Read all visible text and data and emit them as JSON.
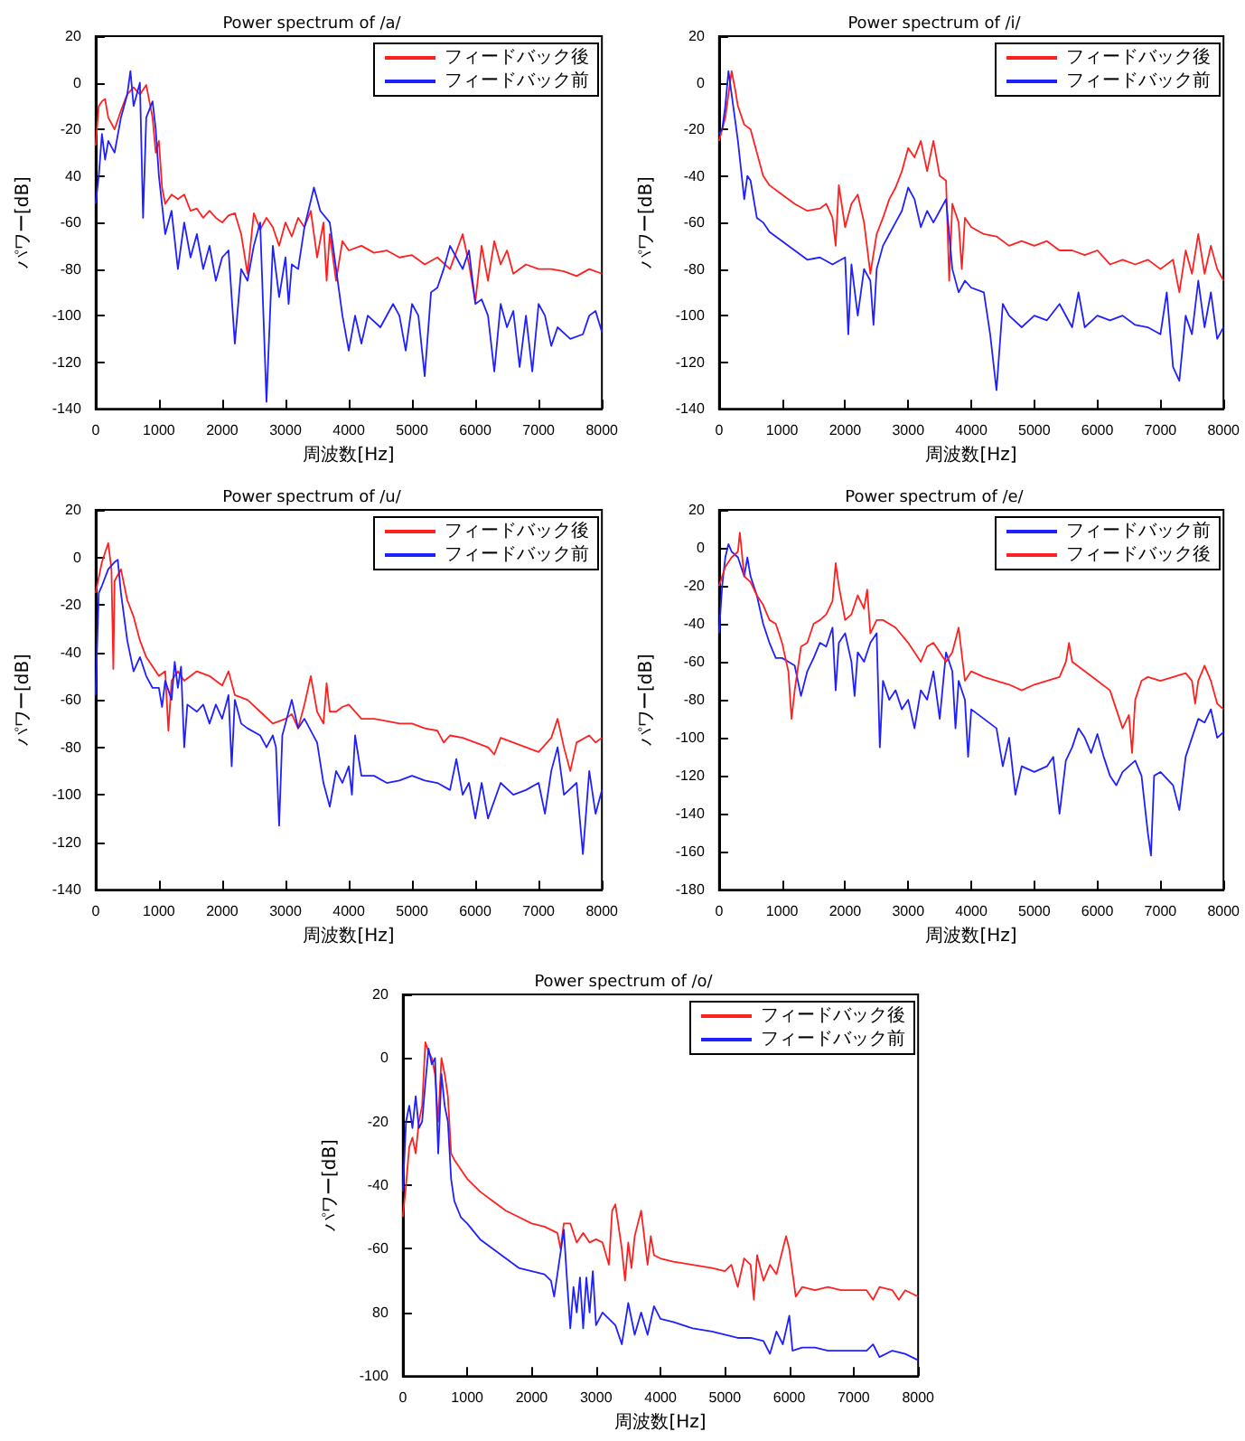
{
  "chart_data": [
    {
      "type": "line",
      "title": "Power spectrum of /a/",
      "xlabel": "周波数[Hz]",
      "ylabel": "パワー[dB]",
      "legend": "top right",
      "marker": "none",
      "xlim": [
        0,
        8000
      ],
      "xticks": [
        0,
        1000,
        2000,
        3000,
        4000,
        5000,
        6000,
        7000,
        8000
      ],
      "ylim": [
        -140,
        20
      ],
      "yticks": [
        20,
        0,
        -20,
        {
          "value": -40,
          "label": "40"
        },
        -60,
        -80,
        -100,
        -120,
        -140
      ],
      "series": [
        {
          "name": "フィードバック後",
          "color": "#ff2020",
          "x": [
            0,
            50,
            100,
            150,
            200,
            300,
            400,
            500,
            600,
            700,
            800,
            900,
            950,
            1000,
            1050,
            1100,
            1200,
            1300,
            1400,
            1500,
            1600,
            1700,
            1800,
            1900,
            2000,
            2100,
            2200,
            2300,
            2400,
            2500,
            2600,
            2700,
            2800,
            2900,
            3000,
            3100,
            3200,
            3300,
            3400,
            3500,
            3600,
            3650,
            3700,
            3800,
            3900,
            4000,
            4200,
            4400,
            4600,
            4800,
            5000,
            5200,
            5400,
            5600,
            5800,
            5900,
            6000,
            6100,
            6200,
            6300,
            6400,
            6500,
            6600,
            6800,
            7000,
            7200,
            7400,
            7600,
            7800,
            8000
          ],
          "values": [
            -27,
            -10,
            -8,
            -7,
            -15,
            -20,
            -12,
            -5,
            -2,
            -5,
            -1,
            -15,
            -30,
            -25,
            -45,
            -52,
            -48,
            -50,
            -48,
            -55,
            -54,
            -58,
            -55,
            -58,
            -60,
            -57,
            -56,
            -65,
            -82,
            -56,
            -63,
            -58,
            -62,
            -70,
            -60,
            -66,
            -58,
            -62,
            -55,
            -75,
            -60,
            -85,
            -65,
            -85,
            -68,
            -72,
            -70,
            -73,
            -72,
            -75,
            -74,
            -78,
            -75,
            -80,
            -65,
            -78,
            -94,
            -70,
            -85,
            -68,
            -78,
            -72,
            -82,
            -78,
            -80,
            -80,
            -81,
            -83,
            -80,
            -82
          ]
        },
        {
          "name": "フィードバック前",
          "color": "#2020ff",
          "x": [
            0,
            50,
            100,
            150,
            200,
            300,
            400,
            500,
            550,
            600,
            700,
            750,
            800,
            900,
            950,
            1000,
            1100,
            1200,
            1300,
            1400,
            1500,
            1600,
            1700,
            1800,
            1900,
            2000,
            2100,
            2200,
            2300,
            2400,
            2500,
            2600,
            2700,
            2800,
            2900,
            3000,
            3050,
            3100,
            3200,
            3300,
            3450,
            3550,
            3700,
            3800,
            3900,
            4000,
            4100,
            4200,
            4300,
            4500,
            4700,
            4800,
            4900,
            5000,
            5100,
            5200,
            5300,
            5400,
            5500,
            5600,
            5700,
            5800,
            5900,
            6000,
            6100,
            6200,
            6300,
            6400,
            6500,
            6600,
            6700,
            6800,
            6900,
            7000,
            7100,
            7200,
            7300,
            7500,
            7700,
            7800,
            7900,
            8000
          ],
          "values": [
            -52,
            -40,
            -22,
            -33,
            -25,
            -30,
            -15,
            -5,
            5,
            -10,
            0,
            -58,
            -15,
            -8,
            -20,
            -40,
            -65,
            -55,
            -80,
            -60,
            -75,
            -65,
            -80,
            -70,
            -85,
            -75,
            -72,
            -112,
            -80,
            -85,
            -70,
            -60,
            -137,
            -70,
            -92,
            -75,
            -95,
            -78,
            -80,
            -62,
            -45,
            -55,
            -60,
            -80,
            -100,
            -115,
            -100,
            -112,
            -100,
            -105,
            -95,
            -100,
            -115,
            -95,
            -100,
            -126,
            -90,
            -88,
            -80,
            -70,
            -75,
            -80,
            -72,
            -95,
            -93,
            -100,
            -124,
            -95,
            -105,
            -98,
            -122,
            -100,
            -124,
            -95,
            -100,
            -113,
            -105,
            -110,
            -108,
            -100,
            -98,
            -107
          ]
        }
      ]
    },
    {
      "type": "line",
      "title": "Power spectrum of /i/",
      "xlabel": "周波数[Hz]",
      "ylabel": "パワー[dB]",
      "legend": "top right",
      "marker": "none",
      "xlim": [
        0,
        8000
      ],
      "xticks": [
        0,
        1000,
        2000,
        3000,
        4000,
        5000,
        6000,
        7000,
        8000
      ],
      "ylim": [
        -140,
        20
      ],
      "yticks": [
        20,
        0,
        -20,
        -40,
        -60,
        -80,
        -100,
        -120,
        -140
      ],
      "series": [
        {
          "name": "フィードバック後",
          "color": "#ff2020",
          "x": [
            0,
            100,
            150,
            200,
            250,
            300,
            400,
            500,
            600,
            700,
            800,
            1000,
            1200,
            1400,
            1600,
            1700,
            1800,
            1850,
            1900,
            2000,
            2100,
            2200,
            2300,
            2400,
            2500,
            2600,
            2700,
            2800,
            2900,
            3000,
            3100,
            3200,
            3300,
            3400,
            3500,
            3600,
            3650,
            3700,
            3800,
            3850,
            3900,
            4000,
            4200,
            4400,
            4600,
            4800,
            5000,
            5200,
            5400,
            5600,
            5800,
            6000,
            6200,
            6400,
            6600,
            6800,
            7000,
            7200,
            7300,
            7400,
            7500,
            7600,
            7700,
            7800,
            7900,
            8000
          ],
          "values": [
            -25,
            -15,
            -5,
            5,
            -2,
            -10,
            -18,
            -20,
            -30,
            -40,
            -44,
            -48,
            -52,
            -55,
            -54,
            -52,
            -58,
            -70,
            -44,
            -62,
            -52,
            -48,
            -60,
            -82,
            -65,
            -58,
            -50,
            -45,
            -38,
            -28,
            -32,
            -25,
            -38,
            -25,
            -40,
            -42,
            -85,
            -52,
            -60,
            -80,
            -58,
            -62,
            -65,
            -66,
            -70,
            -68,
            -70,
            -68,
            -72,
            -72,
            -74,
            -72,
            -78,
            -76,
            -78,
            -76,
            -80,
            -76,
            -90,
            -72,
            -82,
            -65,
            -82,
            -70,
            -80,
            -85
          ]
        },
        {
          "name": "フィードバック前",
          "color": "#2020ff",
          "x": [
            0,
            50,
            100,
            150,
            200,
            250,
            300,
            400,
            450,
            500,
            600,
            700,
            800,
            1000,
            1200,
            1400,
            1600,
            1800,
            2000,
            2050,
            2100,
            2200,
            2300,
            2400,
            2450,
            2500,
            2600,
            2700,
            2800,
            2900,
            3000,
            3100,
            3200,
            3300,
            3400,
            3500,
            3600,
            3700,
            3800,
            3900,
            4000,
            4200,
            4300,
            4400,
            4500,
            4600,
            4800,
            5000,
            5200,
            5400,
            5600,
            5700,
            5800,
            6000,
            6200,
            6400,
            6600,
            6800,
            7000,
            7100,
            7200,
            7300,
            7400,
            7500,
            7600,
            7700,
            7800,
            7900,
            8000
          ],
          "values": [
            -22,
            -20,
            -10,
            5,
            -5,
            -15,
            -25,
            -50,
            -40,
            -42,
            -58,
            -60,
            -64,
            -68,
            -72,
            -76,
            -75,
            -78,
            -75,
            -108,
            -78,
            -100,
            -80,
            -85,
            -104,
            -80,
            -70,
            -65,
            -60,
            -55,
            -45,
            -50,
            -62,
            -55,
            -60,
            -55,
            -50,
            -80,
            -90,
            -85,
            -88,
            -90,
            -108,
            -132,
            -95,
            -100,
            -105,
            -100,
            -102,
            -95,
            -105,
            -90,
            -105,
            -100,
            -102,
            -100,
            -104,
            -105,
            -108,
            -90,
            -122,
            -128,
            -100,
            -108,
            -85,
            -105,
            -90,
            -110,
            -105
          ]
        }
      ]
    },
    {
      "type": "line",
      "title": "Power spectrum of /u/",
      "xlabel": "周波数[Hz]",
      "ylabel": "パワー[dB]",
      "legend": "top right",
      "marker": "none",
      "xlim": [
        0,
        8000
      ],
      "xticks": [
        0,
        1000,
        2000,
        3000,
        4000,
        5000,
        6000,
        7000,
        8000
      ],
      "ylim": [
        -140,
        20
      ],
      "yticks": [
        20,
        0,
        -20,
        -40,
        -60,
        -80,
        -100,
        -120,
        -140
      ],
      "series": [
        {
          "name": "フィードバック後",
          "color": "#ff2020",
          "x": [
            0,
            100,
            200,
            250,
            280,
            300,
            400,
            500,
            600,
            700,
            800,
            1000,
            1100,
            1150,
            1200,
            1300,
            1400,
            1600,
            1800,
            2000,
            2100,
            2200,
            2400,
            2600,
            2800,
            3000,
            3100,
            3200,
            3300,
            3400,
            3500,
            3600,
            3650,
            3700,
            3800,
            3900,
            4000,
            4200,
            4400,
            4600,
            4800,
            5000,
            5200,
            5400,
            5500,
            5600,
            5800,
            6000,
            6200,
            6300,
            6400,
            6600,
            6800,
            7000,
            7200,
            7300,
            7400,
            7500,
            7600,
            7800,
            7900,
            8000
          ],
          "values": [
            -15,
            -2,
            6,
            -5,
            -47,
            -10,
            -5,
            -18,
            -25,
            -35,
            -42,
            -50,
            -48,
            -73,
            -52,
            -48,
            -52,
            -48,
            -50,
            -54,
            -48,
            -58,
            -60,
            -65,
            -70,
            -68,
            -66,
            -72,
            -62,
            -50,
            -65,
            -70,
            -53,
            -65,
            -65,
            -63,
            -62,
            -68,
            -68,
            -69,
            -70,
            -70,
            -72,
            -73,
            -78,
            -75,
            -76,
            -78,
            -80,
            -83,
            -76,
            -78,
            -80,
            -82,
            -76,
            -68,
            -80,
            -90,
            -78,
            -75,
            -78,
            -76
          ]
        },
        {
          "name": "フィードバック前",
          "color": "#2020ff",
          "x": [
            0,
            50,
            100,
            200,
            300,
            350,
            400,
            500,
            600,
            700,
            800,
            900,
            1000,
            1050,
            1100,
            1200,
            1250,
            1300,
            1350,
            1400,
            1450,
            1600,
            1700,
            1800,
            1900,
            2000,
            2100,
            2150,
            2200,
            2300,
            2400,
            2600,
            2700,
            2800,
            2850,
            2900,
            2950,
            3000,
            3100,
            3200,
            3300,
            3500,
            3600,
            3700,
            3800,
            3900,
            4000,
            4050,
            4100,
            4200,
            4400,
            4600,
            4800,
            5000,
            5200,
            5400,
            5600,
            5700,
            5800,
            5900,
            6000,
            6100,
            6200,
            6400,
            6600,
            6800,
            7000,
            7100,
            7200,
            7300,
            7400,
            7600,
            7700,
            7800,
            7900,
            8000
          ],
          "values": [
            -58,
            -15,
            -12,
            -5,
            -2,
            -1,
            -15,
            -35,
            -48,
            -42,
            -50,
            -55,
            -55,
            -63,
            -52,
            -60,
            -44,
            -55,
            -46,
            -80,
            -62,
            -65,
            -62,
            -70,
            -62,
            -68,
            -58,
            -88,
            -60,
            -70,
            -72,
            -75,
            -80,
            -75,
            -80,
            -113,
            -75,
            -70,
            -60,
            -72,
            -68,
            -78,
            -95,
            -105,
            -90,
            -95,
            -88,
            -100,
            -75,
            -92,
            -92,
            -95,
            -94,
            -92,
            -94,
            -95,
            -98,
            -85,
            -100,
            -95,
            -110,
            -95,
            -110,
            -95,
            -100,
            -98,
            -95,
            -108,
            -90,
            -80,
            -100,
            -95,
            -125,
            -90,
            -108,
            -98
          ]
        }
      ]
    },
    {
      "type": "line",
      "title": "Power spectrum of /e/",
      "xlabel": "周波数[Hz]",
      "ylabel": "パワー[dB]",
      "legend": "top right",
      "marker": "none",
      "xlim": [
        0,
        8000
      ],
      "xticks": [
        0,
        1000,
        2000,
        3000,
        4000,
        5000,
        6000,
        7000,
        8000
      ],
      "ylim": [
        -180,
        20
      ],
      "yticks": [
        20,
        0,
        -20,
        -40,
        -60,
        -80,
        -100,
        -120,
        -140,
        -160,
        -180
      ],
      "series": [
        {
          "name": "フィードバック前",
          "color": "#2020ff",
          "x": [
            0,
            50,
            100,
            150,
            200,
            300,
            400,
            450,
            500,
            600,
            700,
            800,
            900,
            1000,
            1100,
            1200,
            1300,
            1400,
            1500,
            1600,
            1700,
            1800,
            1850,
            1900,
            2000,
            2100,
            2150,
            2200,
            2300,
            2400,
            2500,
            2550,
            2600,
            2700,
            2800,
            2900,
            3000,
            3100,
            3200,
            3300,
            3400,
            3500,
            3600,
            3700,
            3750,
            3800,
            3900,
            3950,
            4000,
            4200,
            4400,
            4500,
            4600,
            4700,
            4800,
            5000,
            5200,
            5300,
            5400,
            5500,
            5600,
            5700,
            5800,
            5900,
            6000,
            6100,
            6200,
            6300,
            6400,
            6500,
            6600,
            6700,
            6800,
            6850,
            6900,
            7000,
            7200,
            7300,
            7400,
            7500,
            7600,
            7700,
            7800,
            7900,
            8000
          ],
          "values": [
            -45,
            -20,
            -5,
            2,
            -2,
            -5,
            -15,
            -5,
            -15,
            -25,
            -40,
            -50,
            -58,
            -58,
            -60,
            -62,
            -78,
            -65,
            -58,
            -50,
            -52,
            -42,
            -75,
            -50,
            -45,
            -60,
            -78,
            -55,
            -60,
            -50,
            -45,
            -105,
            -70,
            -80,
            -75,
            -85,
            -80,
            -95,
            -75,
            -80,
            -65,
            -90,
            -55,
            -65,
            -95,
            -70,
            -80,
            -110,
            -85,
            -90,
            -95,
            -115,
            -100,
            -130,
            -115,
            -118,
            -115,
            -110,
            -140,
            -112,
            -105,
            -95,
            -100,
            -108,
            -98,
            -110,
            -120,
            -125,
            -118,
            -115,
            -112,
            -120,
            -150,
            -162,
            -120,
            -118,
            -125,
            -138,
            -110,
            -100,
            -90,
            -92,
            -85,
            -100,
            -97
          ]
        },
        {
          "name": "フィードバック後",
          "color": "#ff2020",
          "x": [
            0,
            100,
            200,
            300,
            330,
            400,
            500,
            600,
            700,
            800,
            900,
            1000,
            1100,
            1150,
            1200,
            1300,
            1400,
            1500,
            1600,
            1700,
            1800,
            1850,
            1900,
            2000,
            2100,
            2200,
            2300,
            2350,
            2400,
            2500,
            2600,
            2800,
            3000,
            3100,
            3200,
            3300,
            3400,
            3500,
            3600,
            3700,
            3800,
            3900,
            4000,
            4200,
            4400,
            4600,
            4800,
            5000,
            5200,
            5400,
            5500,
            5550,
            5600,
            5800,
            6000,
            6200,
            6300,
            6400,
            6500,
            6550,
            6600,
            6700,
            6800,
            7000,
            7200,
            7400,
            7500,
            7550,
            7600,
            7700,
            7800,
            7900,
            8000
          ],
          "values": [
            -20,
            -10,
            -5,
            -2,
            8,
            -15,
            -18,
            -25,
            -30,
            -38,
            -40,
            -50,
            -65,
            -90,
            -75,
            -52,
            -50,
            -40,
            -38,
            -35,
            -28,
            -8,
            -20,
            -38,
            -35,
            -25,
            -32,
            -22,
            -45,
            -38,
            -38,
            -42,
            -50,
            -55,
            -60,
            -52,
            -50,
            -55,
            -60,
            -55,
            -42,
            -70,
            -65,
            -68,
            -70,
            -72,
            -75,
            -72,
            -70,
            -68,
            -60,
            -50,
            -60,
            -65,
            -70,
            -75,
            -85,
            -95,
            -88,
            -108,
            -80,
            -70,
            -68,
            -70,
            -68,
            -66,
            -70,
            -82,
            -70,
            -62,
            -70,
            -82,
            -85
          ]
        }
      ]
    },
    {
      "type": "line",
      "title": "Power spectrum of /o/",
      "xlabel": "周波数[Hz]",
      "ylabel": "パワー[dB]",
      "legend": "top right",
      "marker": "none",
      "xlim": [
        0,
        8000
      ],
      "xticks": [
        0,
        1000,
        2000,
        3000,
        4000,
        5000,
        6000,
        7000,
        8000
      ],
      "ylim": [
        -100,
        20
      ],
      "yticks": [
        20,
        0,
        -20,
        -40,
        -60,
        {
          "value": -80,
          "label": "80"
        },
        -100
      ],
      "series": [
        {
          "name": "フィードバック後",
          "color": "#ff2020",
          "x": [
            0,
            50,
            100,
            150,
            200,
            250,
            300,
            350,
            400,
            450,
            500,
            550,
            600,
            650,
            700,
            750,
            800,
            900,
            1000,
            1200,
            1400,
            1600,
            1800,
            2000,
            2200,
            2400,
            2450,
            2500,
            2600,
            2700,
            2800,
            2900,
            3000,
            3100,
            3200,
            3250,
            3300,
            3400,
            3450,
            3500,
            3550,
            3600,
            3700,
            3800,
            3850,
            3900,
            4000,
            4200,
            4500,
            4800,
            5000,
            5100,
            5200,
            5300,
            5400,
            5450,
            5500,
            5600,
            5700,
            5800,
            5900,
            5950,
            6000,
            6100,
            6200,
            6400,
            6600,
            6800,
            7000,
            7200,
            7300,
            7400,
            7600,
            7700,
            7800,
            8000
          ],
          "values": [
            -50,
            -40,
            -28,
            -25,
            -30,
            -20,
            -15,
            5,
            2,
            0,
            -5,
            -20,
            0,
            -5,
            -12,
            -30,
            -32,
            -35,
            -38,
            -42,
            -45,
            -48,
            -50,
            -52,
            -53,
            -55,
            -60,
            -52,
            -52,
            -58,
            -55,
            -58,
            -57,
            -58,
            -65,
            -48,
            -46,
            -60,
            -70,
            -58,
            -66,
            -56,
            -48,
            -65,
            -56,
            -62,
            -63,
            -64,
            -65,
            -66,
            -67,
            -65,
            -72,
            -63,
            -65,
            -76,
            -62,
            -70,
            -65,
            -68,
            -60,
            -56,
            -60,
            -75,
            -72,
            -73,
            -72,
            -73,
            -73,
            -73,
            -76,
            -72,
            -73,
            -76,
            -73,
            -75
          ]
        },
        {
          "name": "フィードバック前",
          "color": "#2020ff",
          "x": [
            0,
            50,
            100,
            150,
            200,
            250,
            300,
            350,
            400,
            450,
            500,
            550,
            600,
            650,
            700,
            750,
            800,
            900,
            1000,
            1200,
            1400,
            1600,
            1800,
            2000,
            2200,
            2300,
            2350,
            2400,
            2500,
            2550,
            2600,
            2650,
            2700,
            2750,
            2800,
            2850,
            2900,
            2950,
            3000,
            3100,
            3200,
            3300,
            3400,
            3500,
            3600,
            3700,
            3800,
            3900,
            4000,
            4200,
            4500,
            4800,
            5000,
            5200,
            5400,
            5600,
            5700,
            5800,
            5900,
            6000,
            6050,
            6200,
            6400,
            6600,
            6800,
            7000,
            7200,
            7300,
            7400,
            7600,
            7800,
            8000
          ],
          "values": [
            -42,
            -20,
            -15,
            -22,
            -12,
            -22,
            -20,
            -8,
            3,
            -2,
            0,
            -30,
            -5,
            -15,
            -20,
            -38,
            -45,
            -50,
            -52,
            -57,
            -60,
            -63,
            -66,
            -67,
            -68,
            -70,
            -75,
            -68,
            -54,
            -70,
            -85,
            -72,
            -80,
            -69,
            -85,
            -69,
            -80,
            -67,
            -84,
            -80,
            -82,
            -84,
            -90,
            -77,
            -87,
            -80,
            -87,
            -78,
            -82,
            -83,
            -85,
            -86,
            -87,
            -88,
            -88,
            -89,
            -93,
            -86,
            -90,
            -81,
            -92,
            -91,
            -91,
            -92,
            -92,
            -92,
            -92,
            -90,
            -94,
            -92,
            -93,
            -95
          ]
        }
      ]
    }
  ]
}
